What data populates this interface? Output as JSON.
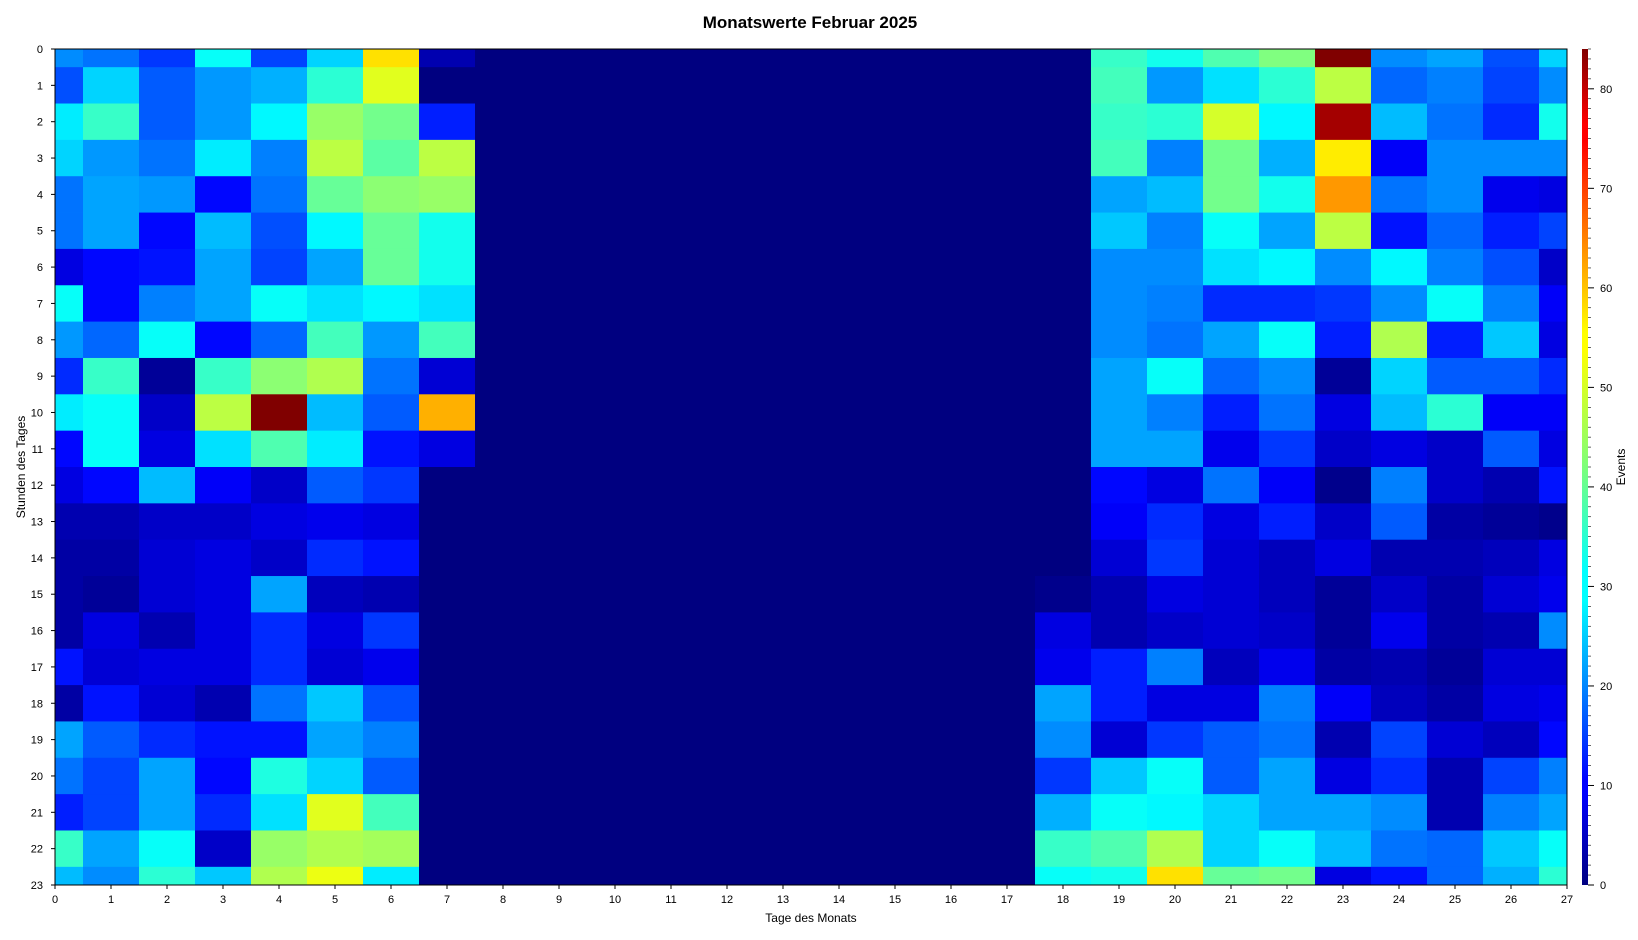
{
  "chart_data": {
    "type": "heatmap",
    "title": "Monatswerte Februar 2025",
    "xlabel": "Tage des Monats",
    "ylabel": "Stunden des Tages",
    "colorbar_label": "Events",
    "colormap": "jet",
    "xlim": [
      0,
      27
    ],
    "ylim": [
      0,
      23
    ],
    "y_inverted": true,
    "x_ticks": [
      "0",
      "1",
      "2",
      "3",
      "4",
      "5",
      "6",
      "7",
      "8",
      "9",
      "10",
      "11",
      "12",
      "13",
      "14",
      "15",
      "16",
      "17",
      "18",
      "19",
      "20",
      "21",
      "22",
      "23",
      "24",
      "25",
      "26",
      "27"
    ],
    "y_ticks": [
      "0",
      "1",
      "2",
      "3",
      "4",
      "5",
      "6",
      "7",
      "8",
      "9",
      "10",
      "11",
      "12",
      "13",
      "14",
      "15",
      "16",
      "17",
      "18",
      "19",
      "20",
      "21",
      "22",
      "23"
    ],
    "value_range": [
      0,
      84
    ],
    "colorbar_ticks": [
      "0",
      "10",
      "20",
      "30",
      "40",
      "50",
      "60",
      "70",
      "80"
    ],
    "columns": [
      {
        "day": 0,
        "values": [
          22,
          17,
          30,
          28,
          20,
          20,
          8,
          32,
          23,
          14,
          30,
          11,
          8,
          4,
          3,
          3,
          3,
          12,
          3,
          24,
          20,
          13,
          36,
          26
        ]
      },
      {
        "day": 1,
        "values": [
          20,
          28,
          36,
          23,
          24,
          24,
          11,
          11,
          19,
          36,
          32,
          32,
          11,
          4,
          3,
          2,
          8,
          7,
          12,
          18,
          16,
          16,
          24,
          22
        ]
      },
      {
        "day": 2,
        "values": [
          15,
          18,
          18,
          20,
          23,
          11,
          12,
          21,
          32,
          2,
          6,
          8,
          26,
          6,
          7,
          7,
          4,
          8,
          7,
          14,
          24,
          24,
          32,
          35
        ]
      },
      {
        "day": 3,
        "values": [
          32,
          23,
          23,
          30,
          11,
          26,
          24,
          24,
          11,
          36,
          47,
          29,
          10,
          6,
          8,
          8,
          8,
          8,
          4,
          12,
          11,
          14,
          6,
          27
        ]
      },
      {
        "day": 4,
        "values": [
          16,
          25,
          31,
          21,
          20,
          17,
          16,
          32,
          19,
          43,
          84,
          38,
          6,
          8,
          6,
          24,
          14,
          14,
          20,
          12,
          34,
          29,
          44,
          46
        ]
      },
      {
        "day": 5,
        "values": [
          28,
          35,
          44,
          47,
          40,
          31,
          24,
          29,
          37,
          46,
          26,
          30,
          18,
          9,
          14,
          5,
          8,
          7,
          27,
          24,
          28,
          50,
          46,
          51
        ]
      },
      {
        "day": 6,
        "values": [
          55,
          50,
          41,
          39,
          43,
          40,
          40,
          31,
          23,
          20,
          18,
          12,
          15,
          8,
          12,
          4,
          15,
          9,
          17,
          21,
          18,
          37,
          45,
          30
        ]
      },
      {
        "day": 7,
        "values": [
          4,
          0,
          13,
          47,
          44,
          33,
          33,
          29,
          37,
          7,
          59,
          8,
          0,
          0,
          0,
          0,
          0,
          0,
          0,
          0,
          0,
          0,
          0,
          0
        ]
      },
      {
        "day": 8,
        "values": [
          0,
          0,
          0,
          0,
          0,
          0,
          0,
          0,
          0,
          0,
          0,
          0,
          0,
          0,
          0,
          0,
          0,
          0,
          0,
          0,
          0,
          0,
          0,
          0
        ]
      },
      {
        "day": 9,
        "values": [
          0,
          0,
          0,
          0,
          0,
          0,
          0,
          0,
          0,
          0,
          0,
          0,
          0,
          0,
          0,
          0,
          0,
          0,
          0,
          0,
          0,
          0,
          0,
          0
        ]
      },
      {
        "day": 10,
        "values": [
          0,
          0,
          0,
          0,
          0,
          0,
          0,
          0,
          0,
          0,
          0,
          0,
          0,
          0,
          0,
          0,
          0,
          0,
          0,
          0,
          0,
          0,
          0,
          0
        ]
      },
      {
        "day": 11,
        "values": [
          0,
          0,
          0,
          0,
          0,
          0,
          0,
          0,
          0,
          0,
          0,
          0,
          0,
          0,
          0,
          0,
          0,
          0,
          0,
          0,
          0,
          0,
          0,
          0
        ]
      },
      {
        "day": 12,
        "values": [
          0,
          0,
          0,
          0,
          0,
          0,
          0,
          0,
          0,
          0,
          0,
          0,
          0,
          0,
          0,
          0,
          0,
          0,
          0,
          0,
          0,
          0,
          0,
          0
        ]
      },
      {
        "day": 13,
        "values": [
          0,
          0,
          0,
          0,
          0,
          0,
          0,
          0,
          0,
          0,
          0,
          0,
          0,
          0,
          0,
          0,
          0,
          0,
          0,
          0,
          0,
          0,
          0,
          0
        ]
      },
      {
        "day": 14,
        "values": [
          0,
          0,
          0,
          0,
          0,
          0,
          0,
          0,
          0,
          0,
          0,
          0,
          0,
          0,
          0,
          0,
          0,
          0,
          0,
          0,
          0,
          0,
          0,
          0
        ]
      },
      {
        "day": 15,
        "values": [
          0,
          0,
          0,
          0,
          0,
          0,
          0,
          0,
          0,
          0,
          0,
          0,
          0,
          0,
          0,
          0,
          0,
          0,
          0,
          0,
          0,
          0,
          0,
          0
        ]
      },
      {
        "day": 16,
        "values": [
          0,
          0,
          0,
          0,
          0,
          0,
          0,
          0,
          0,
          0,
          0,
          0,
          0,
          0,
          0,
          0,
          0,
          0,
          0,
          0,
          0,
          0,
          0,
          0
        ]
      },
      {
        "day": 17,
        "values": [
          0,
          0,
          0,
          0,
          0,
          0,
          0,
          0,
          0,
          0,
          0,
          0,
          0,
          0,
          0,
          0,
          0,
          0,
          0,
          0,
          0,
          0,
          0,
          0
        ]
      },
      {
        "day": 18,
        "values": [
          0,
          0,
          0,
          0,
          0,
          0,
          0,
          0,
          0,
          0,
          0,
          0,
          0,
          0,
          0,
          1,
          8,
          9,
          24,
          22,
          15,
          25,
          36,
          32
        ]
      },
      {
        "day": 19,
        "values": [
          36,
          37,
          36,
          37,
          24,
          27,
          22,
          22,
          22,
          24,
          24,
          24,
          11,
          10,
          7,
          4,
          4,
          13,
          13,
          7,
          27,
          32,
          38,
          33
        ]
      },
      {
        "day": 20,
        "values": [
          33,
          23,
          35,
          21,
          26,
          21,
          22,
          21,
          20,
          32,
          21,
          24,
          8,
          14,
          15,
          8,
          6,
          21,
          8,
          15,
          32,
          31,
          46,
          55
        ]
      },
      {
        "day": 21,
        "values": [
          38,
          29,
          49,
          41,
          41,
          32,
          29,
          14,
          24,
          19,
          13,
          9,
          20,
          8,
          7,
          7,
          7,
          5,
          8,
          18,
          18,
          28,
          28,
          40
        ]
      },
      {
        "day": 22,
        "values": [
          42,
          35,
          31,
          25,
          33,
          24,
          31,
          14,
          32,
          22,
          20,
          15,
          10,
          13,
          5,
          5,
          6,
          9,
          21,
          20,
          24,
          24,
          32,
          41
        ]
      },
      {
        "day": 23,
        "values": [
          84,
          47,
          81,
          54,
          61,
          47,
          22,
          15,
          13,
          2,
          8,
          6,
          1,
          6,
          8,
          2,
          2,
          3,
          10,
          4,
          8,
          24,
          26,
          8
        ]
      },
      {
        "day": 24,
        "values": [
          22,
          19,
          26,
          10,
          20,
          12,
          31,
          22,
          46,
          28,
          26,
          8,
          21,
          18,
          4,
          6,
          9,
          4,
          5,
          16,
          14,
          22,
          20,
          12
        ]
      },
      {
        "day": 25,
        "values": [
          24,
          21,
          20,
          22,
          22,
          19,
          21,
          32,
          13,
          18,
          35,
          6,
          6,
          3,
          4,
          3,
          3,
          2,
          3,
          7,
          4,
          4,
          19,
          19
        ]
      },
      {
        "day": 26,
        "values": [
          17,
          16,
          14,
          22,
          9,
          13,
          17,
          21,
          27,
          18,
          10,
          18,
          4,
          2,
          5,
          7,
          4,
          7,
          8,
          5,
          16,
          21,
          27,
          25
        ]
      },
      {
        "day": 27,
        "values": [
          28,
          22,
          33,
          22,
          8,
          16,
          6,
          10,
          8,
          14,
          10,
          8,
          12,
          1,
          8,
          9,
          22,
          7,
          9,
          11,
          21,
          24,
          32,
          35
        ]
      }
    ]
  }
}
